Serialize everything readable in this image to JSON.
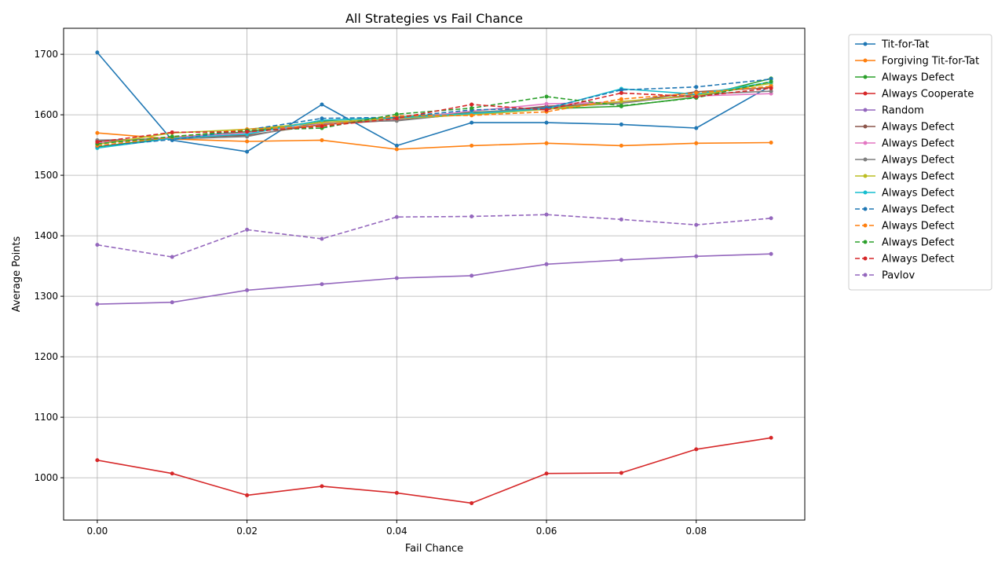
{
  "chart_data": {
    "type": "line",
    "title": "All Strategies vs Fail Chance",
    "xlabel": "Fail Chance",
    "ylabel": "Average Points",
    "xlim": [
      -0.0045,
      0.0945
    ],
    "ylim": [
      930,
      1743
    ],
    "xticks": [
      0.0,
      0.02,
      0.04,
      0.06,
      0.08
    ],
    "xtick_labels": [
      "0.00",
      "0.02",
      "0.04",
      "0.06",
      "0.08"
    ],
    "yticks": [
      1000,
      1100,
      1200,
      1300,
      1400,
      1500,
      1600,
      1700
    ],
    "ytick_labels": [
      "1000",
      "1100",
      "1200",
      "1300",
      "1400",
      "1500",
      "1600",
      "1700"
    ],
    "grid": true,
    "legend_position": "outside-right",
    "x": [
      0.0,
      0.01,
      0.02,
      0.03,
      0.04,
      0.05,
      0.06,
      0.07,
      0.08,
      0.09
    ],
    "series": [
      {
        "name": "Tit-for-Tat",
        "color": "#1f77b4",
        "dash": "solid",
        "values": [
          1703,
          1558,
          1539,
          1617,
          1549,
          1587,
          1587,
          1584,
          1578,
          1648
        ]
      },
      {
        "name": "Forgiving Tit-for-Tat",
        "color": "#ff7f0e",
        "dash": "solid",
        "values": [
          1570,
          1560,
          1556,
          1558,
          1543,
          1549,
          1553,
          1549,
          1553,
          1554
        ]
      },
      {
        "name": "Always Defect",
        "color": "#2ca02c",
        "dash": "solid",
        "values": [
          1547,
          1562,
          1572,
          1590,
          1596,
          1604,
          1610,
          1614,
          1629,
          1660
        ]
      },
      {
        "name": "Always Cooperate",
        "color": "#d62728",
        "dash": "solid",
        "values": [
          1029,
          1007,
          971,
          986,
          975,
          958,
          1007,
          1008,
          1047,
          1066
        ]
      },
      {
        "name": "Random",
        "color": "#9467bd",
        "dash": "solid",
        "values": [
          1287,
          1290,
          1310,
          1320,
          1330,
          1334,
          1353,
          1360,
          1366,
          1370
        ]
      },
      {
        "name": "Always Defect",
        "color": "#8c564b",
        "dash": "solid",
        "values": [
          1556,
          1562,
          1566,
          1584,
          1591,
          1602,
          1614,
          1620,
          1638,
          1645
        ]
      },
      {
        "name": "Always Defect",
        "color": "#e377c2",
        "dash": "solid",
        "values": [
          1553,
          1563,
          1570,
          1586,
          1593,
          1606,
          1618,
          1621,
          1631,
          1635
        ]
      },
      {
        "name": "Always Defect",
        "color": "#7f7f7f",
        "dash": "solid",
        "values": [
          1558,
          1560,
          1564,
          1588,
          1590,
          1603,
          1612,
          1619,
          1634,
          1639
        ]
      },
      {
        "name": "Always Defect",
        "color": "#bcbd22",
        "dash": "solid",
        "values": [
          1551,
          1570,
          1576,
          1587,
          1594,
          1600,
          1609,
          1622,
          1632,
          1652
        ]
      },
      {
        "name": "Always Defect",
        "color": "#17becf",
        "dash": "solid",
        "values": [
          1545,
          1561,
          1568,
          1591,
          1595,
          1602,
          1610,
          1643,
          1634,
          1654
        ]
      },
      {
        "name": "Always Defect",
        "color": "#1f77b4",
        "dash": "dashed",
        "values": [
          1548,
          1559,
          1575,
          1594,
          1596,
          1608,
          1611,
          1641,
          1646,
          1659
        ]
      },
      {
        "name": "Always Defect",
        "color": "#ff7f0e",
        "dash": "dashed",
        "values": [
          1549,
          1563,
          1576,
          1582,
          1598,
          1599,
          1605,
          1626,
          1636,
          1647
        ]
      },
      {
        "name": "Always Defect",
        "color": "#2ca02c",
        "dash": "dashed",
        "values": [
          1552,
          1564,
          1574,
          1578,
          1601,
          1611,
          1630,
          1615,
          1628,
          1655
        ]
      },
      {
        "name": "Always Defect",
        "color": "#d62728",
        "dash": "dashed",
        "values": [
          1555,
          1571,
          1572,
          1581,
          1594,
          1617,
          1608,
          1636,
          1630,
          1644
        ]
      },
      {
        "name": "Pavlov",
        "color": "#9467bd",
        "dash": "dashed",
        "values": [
          1385,
          1365,
          1410,
          1395,
          1431,
          1432,
          1435,
          1427,
          1418,
          1429
        ]
      }
    ]
  }
}
